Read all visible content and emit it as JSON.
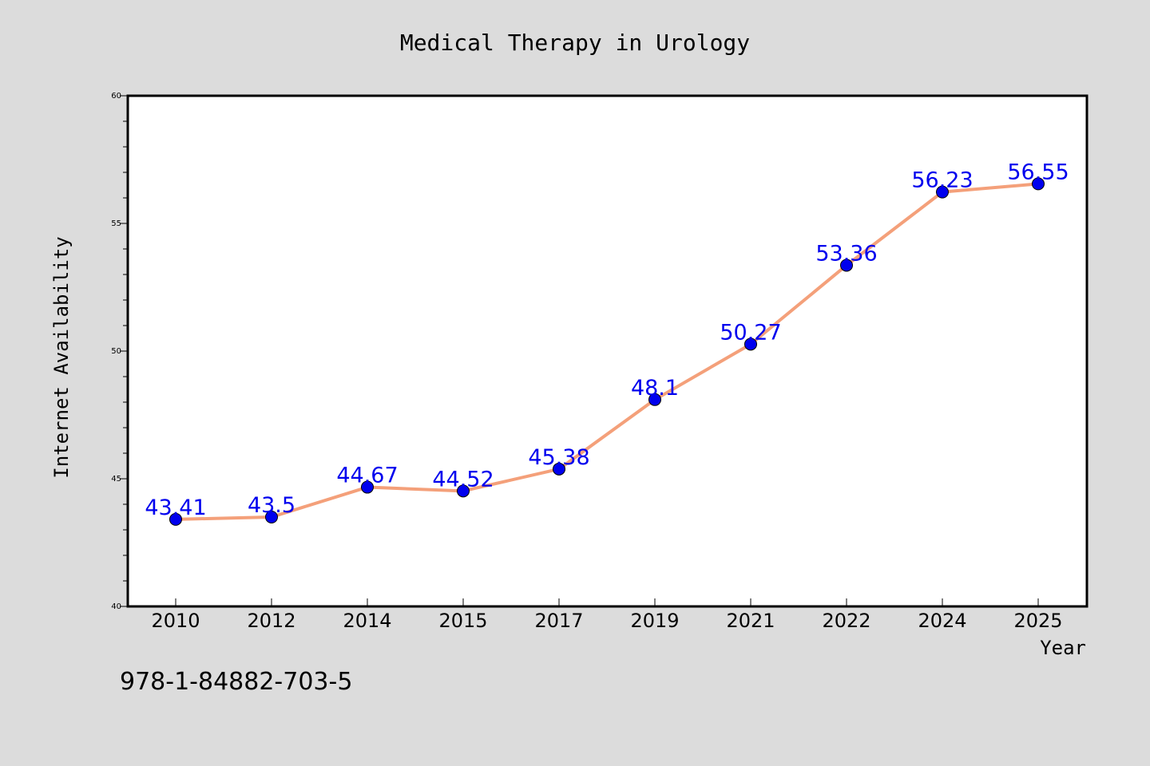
{
  "chart_data": {
    "type": "line",
    "title": "Medical Therapy in Urology",
    "xlabel": "Year",
    "ylabel": "Internet Availability",
    "categories": [
      "2010",
      "2012",
      "2014",
      "2015",
      "2017",
      "2019",
      "2021",
      "2022",
      "2024",
      "2025"
    ],
    "series": [
      {
        "values": [
          43.41,
          43.5,
          44.67,
          44.52,
          45.38,
          48.1,
          50.27,
          53.36,
          56.23,
          56.55
        ],
        "data_labels": [
          "43.41",
          "43.5",
          "44.67",
          "44.52",
          "45.38",
          "48.1",
          "50.27",
          "53.36",
          "56.23",
          "56.55"
        ],
        "line_color": "#f4a07a",
        "marker_color": "#0000ee"
      }
    ],
    "ylim": [
      40,
      60
    ],
    "yticks": [
      "40",
      "45",
      "50",
      "55",
      "60"
    ],
    "grid": false,
    "legend": "none",
    "label_color": "#0000ee"
  },
  "footer": {
    "isbn": "978-1-84882-703-5"
  },
  "colors": {
    "background": "#dcdcdc",
    "plot_background": "#ffffff"
  }
}
